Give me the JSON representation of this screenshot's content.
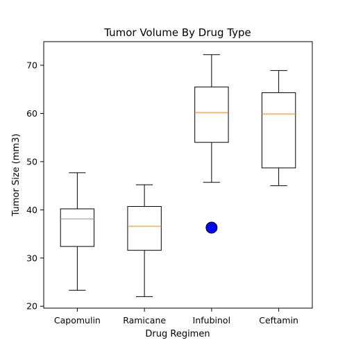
{
  "chart_data": {
    "type": "box",
    "title": "Tumor Volume By Drug Type",
    "xlabel": "Drug Regimen",
    "ylabel": "Tumor Size (mm3)",
    "ylim": [
      19.6,
      74.9
    ],
    "yticks": [
      20,
      30,
      40,
      50,
      60,
      70
    ],
    "grid": false,
    "categories": [
      "Capomulin",
      "Ramicane",
      "Infubinol",
      "Ceftamin"
    ],
    "boxes": [
      {
        "category": "Capomulin",
        "whisker_low": 23.3,
        "q1": 32.4,
        "median": 38.1,
        "q3": 40.2,
        "whisker_high": 47.7,
        "outliers": []
      },
      {
        "category": "Ramicane",
        "whisker_low": 22.0,
        "q1": 31.6,
        "median": 36.6,
        "q3": 40.7,
        "whisker_high": 45.2,
        "outliers": []
      },
      {
        "category": "Infubinol",
        "whisker_low": 45.7,
        "q1": 54.0,
        "median": 60.2,
        "q3": 65.5,
        "whisker_high": 72.2,
        "outliers": [
          36.3
        ]
      },
      {
        "category": "Ceftamin",
        "whisker_low": 45.0,
        "q1": 48.7,
        "median": 59.9,
        "q3": 64.3,
        "whisker_high": 68.9,
        "outliers": []
      }
    ],
    "colors": {
      "box": "#000000",
      "median": "#ff7f0e",
      "outlier_fill": "#0000ff",
      "outlier_edge": "#000000"
    }
  }
}
